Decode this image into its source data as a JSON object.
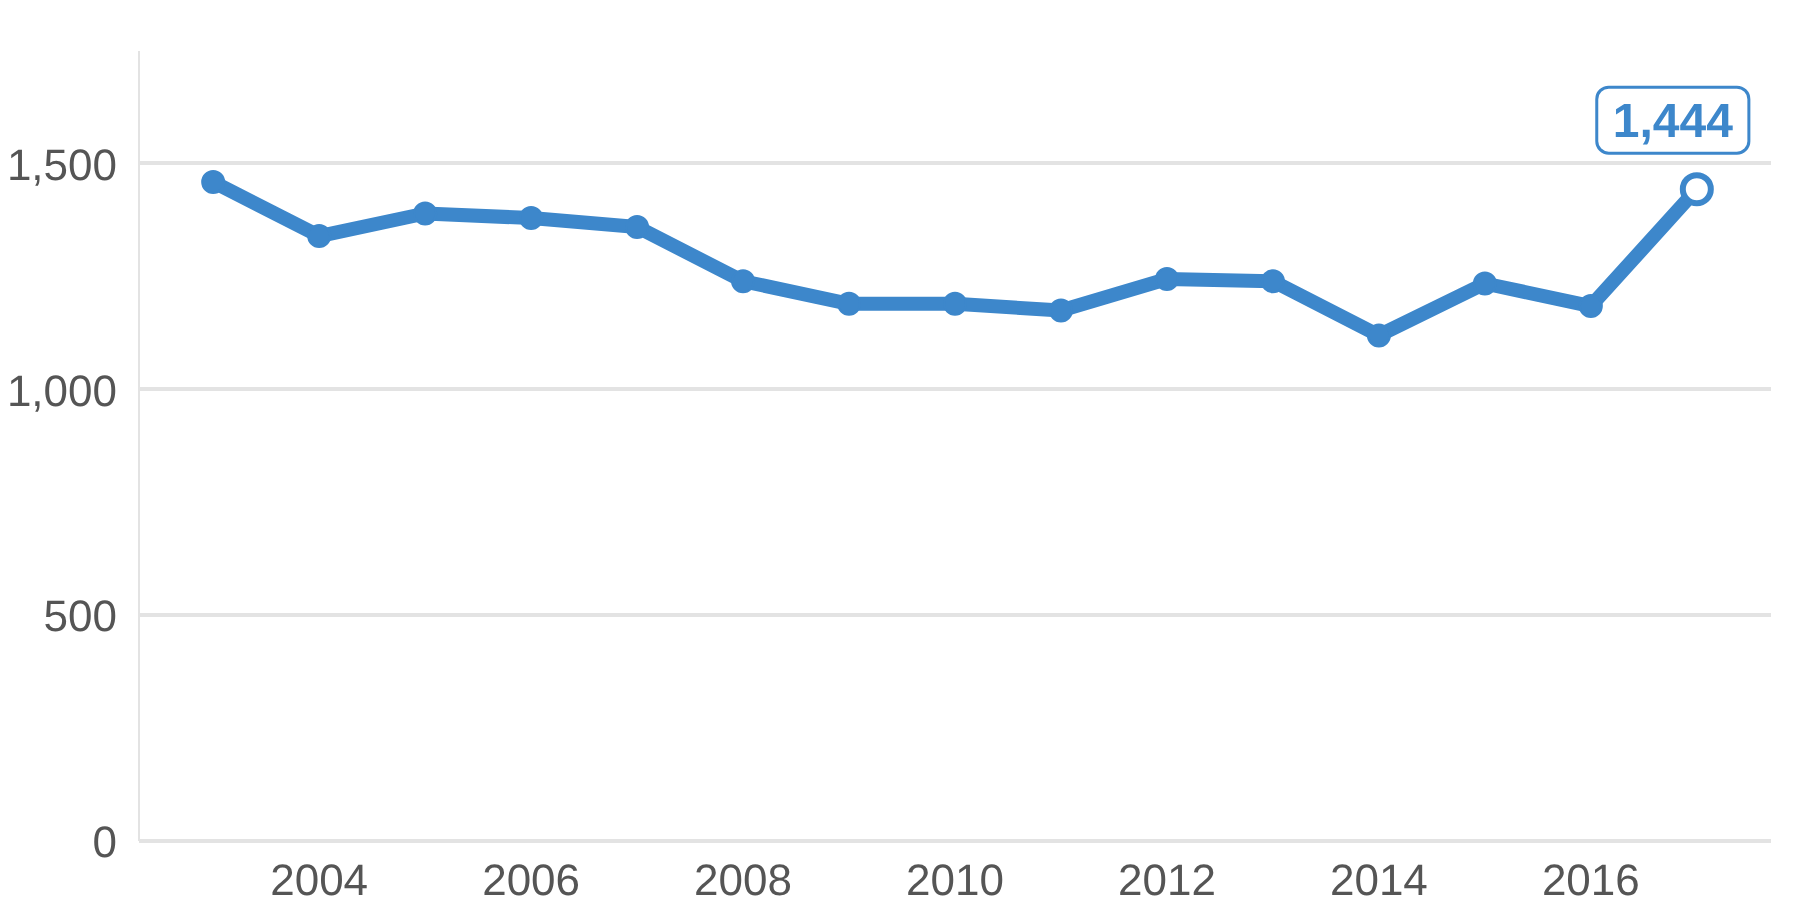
{
  "chart_data": {
    "type": "line",
    "x": [
      2003,
      2004,
      2005,
      2006,
      2007,
      2008,
      2009,
      2010,
      2011,
      2012,
      2013,
      2014,
      2015,
      2016,
      2017
    ],
    "series": [
      {
        "color": "#3d87cb",
        "values": [
          1460,
          1340,
          1390,
          1380,
          1360,
          1240,
          1190,
          1190,
          1175,
          1245,
          1240,
          1120,
          1235,
          1185,
          1444
        ],
        "value_labels": [
          null,
          null,
          null,
          null,
          null,
          null,
          null,
          null,
          null,
          null,
          null,
          null,
          null,
          null,
          "1,444"
        ]
      }
    ],
    "xlim": [
      2002.3,
      2017.7
    ],
    "xticks": [
      2004,
      2006,
      2008,
      2010,
      2012,
      2014,
      2016
    ],
    "ylim": [
      0,
      1750
    ],
    "yticks": [
      0,
      {
        "value": 500,
        "label": "500"
      },
      {
        "value": 1000,
        "label": "1,000"
      },
      {
        "value": 1500,
        "label": "1,500"
      }
    ],
    "grid": "y",
    "marker": "circle",
    "line_style": "solid"
  }
}
